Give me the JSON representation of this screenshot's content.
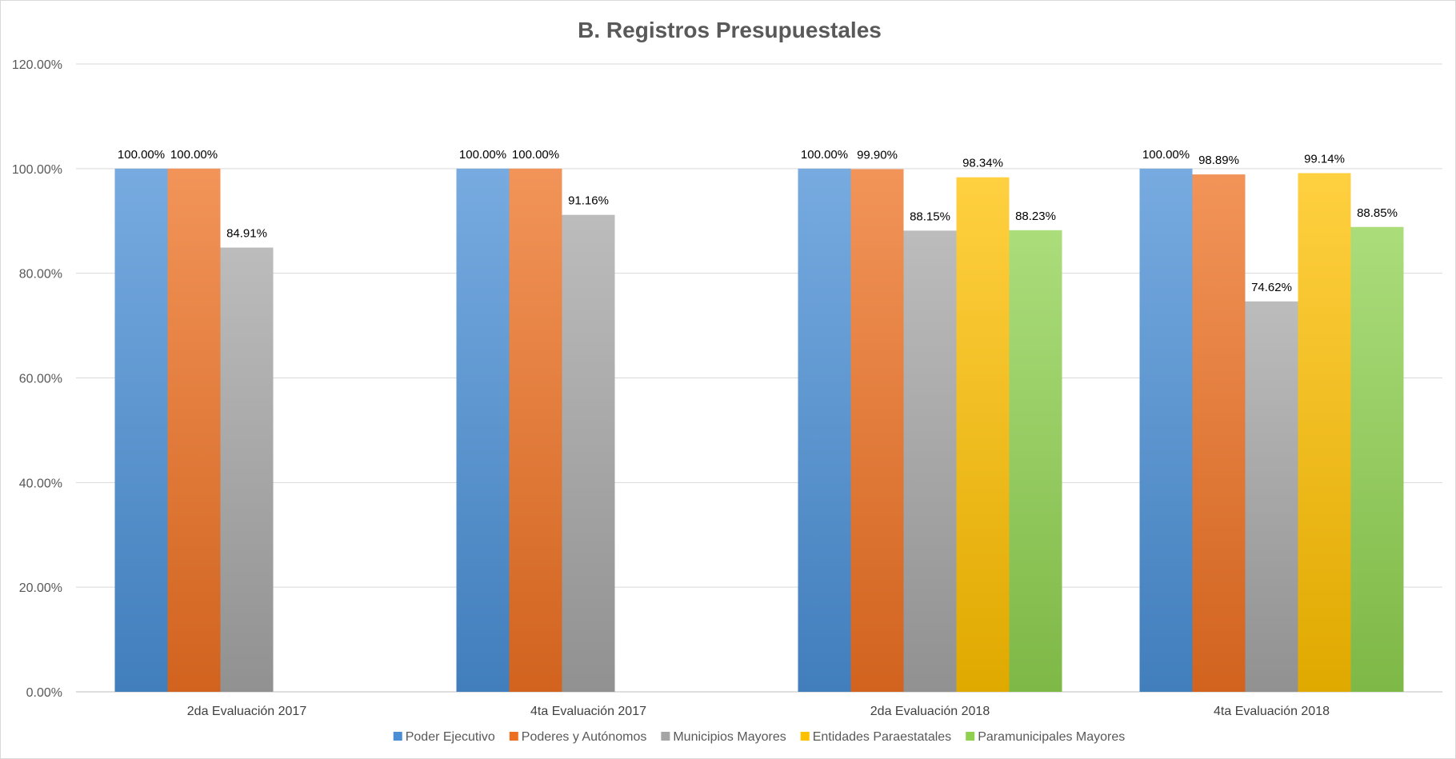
{
  "chart_data": {
    "type": "bar",
    "title": "B. Registros Presupuestales",
    "categories": [
      "2da Evaluación 2017",
      "4ta Evaluación 2017",
      "2da Evaluación 2018",
      "4ta Evaluación 2018"
    ],
    "ylim": [
      0,
      120
    ],
    "yticks": [
      0,
      20,
      40,
      60,
      80,
      100,
      120
    ],
    "ytick_labels": [
      "0.00%",
      "20.00%",
      "40.00%",
      "60.00%",
      "80.00%",
      "100.00%",
      "120.00%"
    ],
    "grid": true,
    "legend_position": "bottom",
    "series": [
      {
        "name": "Poder Ejecutivo",
        "color": "#4a8fd6",
        "values": [
          100.0,
          100.0,
          100.0,
          100.0
        ],
        "labels": [
          "100.00%",
          "100.00%",
          "100.00%",
          "100.00%"
        ]
      },
      {
        "name": "Poderes y Autónomos",
        "color": "#ed7022",
        "values": [
          100.0,
          100.0,
          99.9,
          98.89
        ],
        "labels": [
          "100.00%",
          "100.00%",
          "99.90%",
          "98.89%"
        ]
      },
      {
        "name": "Municipios Mayores",
        "color": "#a5a5a5",
        "values": [
          84.91,
          91.16,
          88.15,
          74.62
        ],
        "labels": [
          "84.91%",
          "91.16%",
          "88.15%",
          "74.62%"
        ]
      },
      {
        "name": "Entidades Paraestatales",
        "color": "#ffc000",
        "values": [
          null,
          null,
          98.34,
          99.14
        ],
        "labels": [
          null,
          null,
          "98.34%",
          "99.14%"
        ]
      },
      {
        "name": "Paramunicipales Mayores",
        "color": "#8fd14f",
        "values": [
          null,
          null,
          88.23,
          88.85
        ],
        "labels": [
          null,
          null,
          "88.23%",
          "88.85%"
        ]
      }
    ]
  }
}
